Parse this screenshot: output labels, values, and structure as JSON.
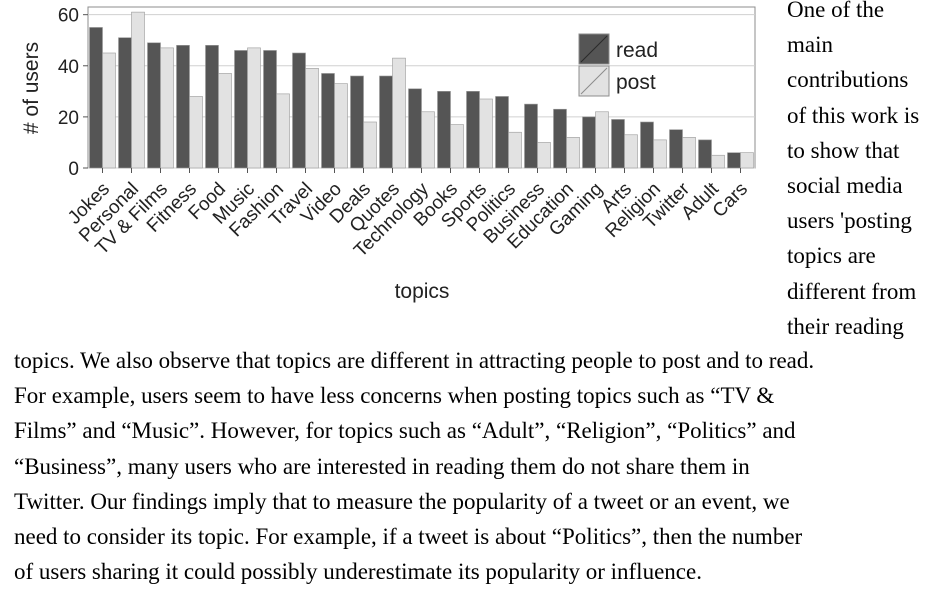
{
  "chart_data": {
    "type": "bar",
    "xlabel": "topics",
    "ylabel": "# of users",
    "ylim": [
      0,
      63
    ],
    "yticks": [
      "0",
      "20",
      "40",
      "60"
    ],
    "grid": true,
    "legend_position": "top-right",
    "categories": [
      "Jokes",
      "Personal",
      "TV & Films",
      "Fitness",
      "Food",
      "Music",
      "Fashion",
      "Travel",
      "Video",
      "Deals",
      "Quotes",
      "Technology",
      "Books",
      "Sports",
      "Politics",
      "Business",
      "Education",
      "Gaming",
      "Arts",
      "Religion",
      "Twitter",
      "Adult",
      "Cars"
    ],
    "series": [
      {
        "name": "read",
        "color": "#555555",
        "values": [
          55,
          51,
          49,
          48,
          48,
          46,
          46,
          45,
          37,
          36,
          36,
          31,
          30,
          30,
          28,
          25,
          23,
          20,
          19,
          18,
          15,
          11,
          6
        ]
      },
      {
        "name": "post",
        "color": "#e2e2e2",
        "values": [
          45,
          61,
          47,
          28,
          37,
          47,
          29,
          39,
          33,
          18,
          43,
          22,
          17,
          27,
          14,
          10,
          12,
          22,
          13,
          11,
          12,
          5,
          6
        ]
      }
    ]
  },
  "side_lines": [
    "One of the",
    "main",
    "contributions",
    "of this work is",
    "to show that",
    "social media",
    "users 'posting",
    "topics are",
    "different from",
    "their reading"
  ],
  "body_lines": [
    "topics. We also observe that topics are different in attracting people to post and to read.",
    "For example, users seem to have less concerns when posting topics such as “TV &",
    "Films” and “Music”. However, for topics such as “Adult”, “Religion”, “Politics” and",
    "“Business”, many users who are interested in reading them do not share them in",
    "Twitter. Our findings imply that to measure the popularity of a tweet or an event, we",
    "need to consider its topic. For example, if a tweet is about “Politics”, then the number",
    "of users sharing it could possibly underestimate its popularity or influence."
  ]
}
